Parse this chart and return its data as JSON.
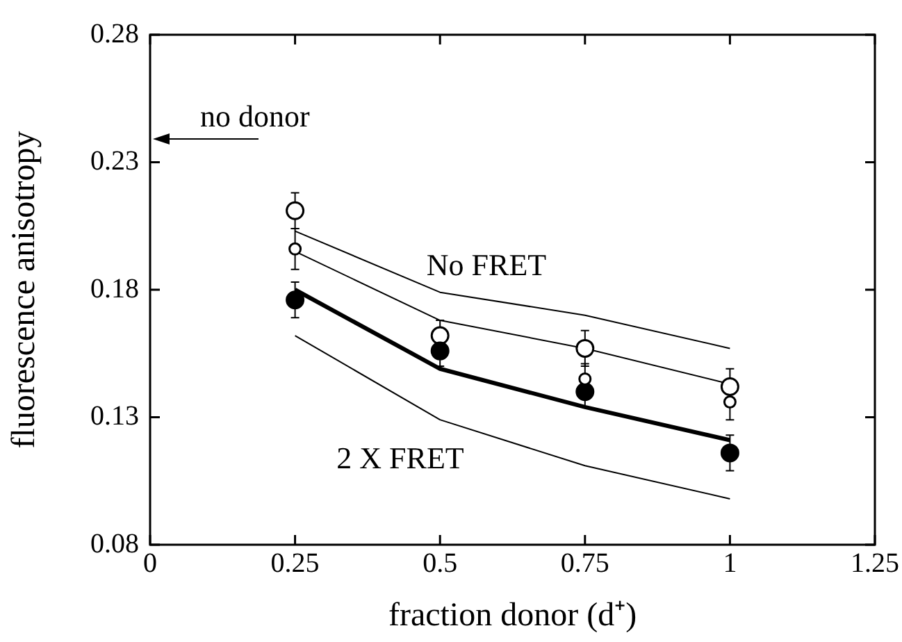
{
  "chart_data": {
    "type": "scatter",
    "xlabel": "fraction donor (d⁺)",
    "ylabel": "fluorescence anisotropy",
    "x": [
      0.25,
      0.5,
      0.75,
      1
    ],
    "xlim": [
      0,
      1.25
    ],
    "xticks": [
      0,
      0.25,
      0.5,
      0.75,
      1,
      1.25
    ],
    "ylim": [
      0.08,
      0.28
    ],
    "yticks": [
      0.08,
      0.13,
      0.18,
      0.23,
      0.28
    ],
    "grid": false,
    "legend": false,
    "marker": "circle",
    "series": [
      {
        "type": "line",
        "color": "#000000",
        "values": [
          0.203,
          0.179,
          0.17,
          0.157
        ],
        "marker": "none"
      },
      {
        "type": "line",
        "color": "#000000",
        "values": [
          0.195,
          0.168,
          0.157,
          0.143
        ],
        "marker": "none"
      },
      {
        "type": "line",
        "color": "#000000",
        "values": [
          0.18,
          0.149,
          0.134,
          0.121
        ],
        "marker": "none"
      },
      {
        "type": "line",
        "color": "#000000",
        "values": [
          0.162,
          0.129,
          0.111,
          0.098
        ],
        "marker": "none"
      },
      {
        "color": "#000000",
        "values": [
          0.211,
          0.162,
          0.157,
          0.142
        ],
        "errors": [
          0.007,
          0.006,
          0.007,
          0.007
        ]
      },
      {
        "color": "#000000",
        "values": [
          0.196,
          null,
          0.145,
          0.136
        ],
        "errors": [
          0.008,
          null,
          0.006,
          0.007
        ]
      },
      {
        "color": "#000000",
        "values": [
          0.176,
          0.156,
          0.14,
          0.116
        ],
        "errors": [
          0.007,
          0.006,
          0.006,
          0.007
        ]
      }
    ],
    "annotations": [
      "no donor",
      "No FRET",
      "2 X FRET"
    ]
  }
}
